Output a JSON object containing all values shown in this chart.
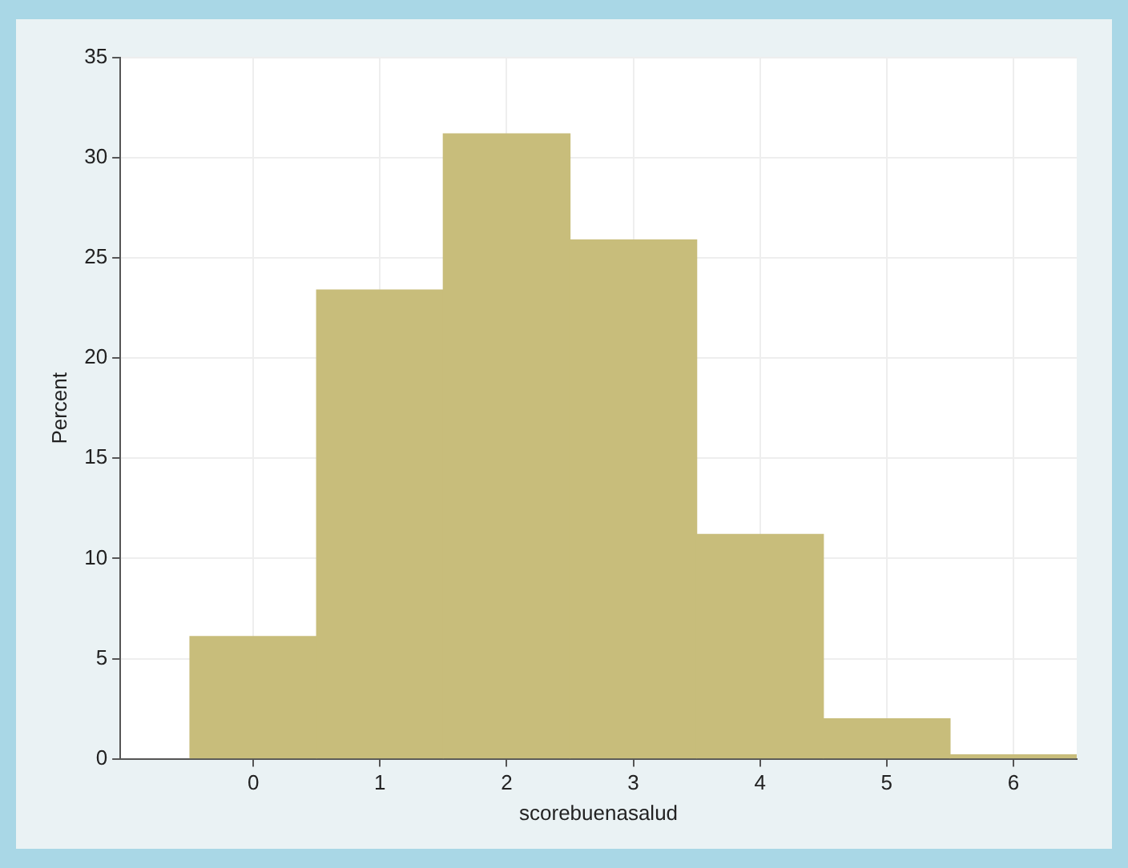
{
  "chart_data": {
    "type": "histogram",
    "xlabel": "scorebuenasalud",
    "ylabel": "Percent",
    "bins": [
      -0.5,
      0.5,
      1.5,
      2.5,
      3.5,
      4.5,
      5.5,
      6.5
    ],
    "values": [
      6.1,
      23.4,
      31.2,
      25.9,
      11.2,
      2.0,
      0.2
    ],
    "color": "#c8bd7b",
    "xlim": [
      -1.05,
      6.5
    ],
    "xticks": [
      0,
      1,
      2,
      3,
      4,
      5,
      6
    ],
    "ylim": [
      0,
      35
    ],
    "yticks": [
      0,
      5,
      10,
      15,
      20,
      25,
      30,
      35
    ],
    "grid": true
  }
}
